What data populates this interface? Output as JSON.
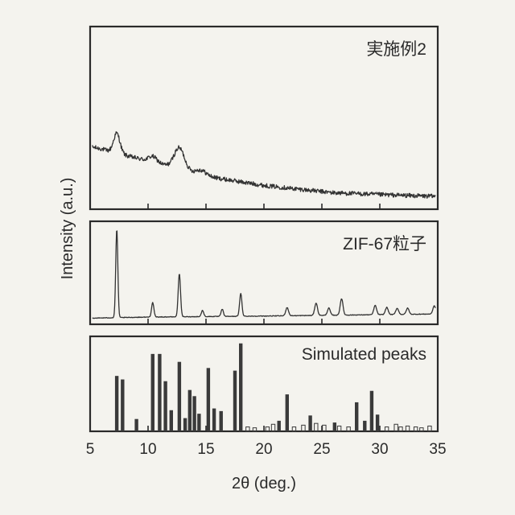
{
  "chart_data": {
    "type": "line",
    "xlabel": "2θ (deg.)",
    "ylabel": "Intensity (a.u.)",
    "xlim": [
      5,
      35
    ],
    "x_ticks": [
      5,
      10,
      15,
      20,
      25,
      30,
      35
    ],
    "panels": [
      {
        "label": "実施例2",
        "kind": "line",
        "baseline": [
          [
            5.2,
            0.34
          ],
          [
            6,
            0.33
          ],
          [
            7,
            0.31
          ],
          [
            9,
            0.28
          ],
          [
            11,
            0.25
          ],
          [
            14,
            0.19
          ],
          [
            17,
            0.16
          ],
          [
            20,
            0.13
          ],
          [
            23,
            0.11
          ],
          [
            26,
            0.09
          ],
          [
            30,
            0.08
          ],
          [
            34.8,
            0.07
          ]
        ],
        "peaks": [
          [
            7.3,
            0.11,
            0.28
          ],
          [
            10.4,
            0.03,
            0.35
          ],
          [
            12.7,
            0.12,
            0.45
          ],
          [
            14.5,
            0.03,
            0.5
          ]
        ],
        "noise": 0.012,
        "ylim": [
          0,
          1
        ]
      },
      {
        "label": "ZIF-67粒子",
        "kind": "line",
        "baseline": [
          [
            5.2,
            0.06
          ],
          [
            10,
            0.07
          ],
          [
            20,
            0.08
          ],
          [
            34.8,
            0.1
          ]
        ],
        "peaks": [
          [
            7.3,
            0.86,
            0.09
          ],
          [
            10.4,
            0.14,
            0.1
          ],
          [
            12.7,
            0.42,
            0.1
          ],
          [
            14.7,
            0.06,
            0.1
          ],
          [
            16.4,
            0.07,
            0.1
          ],
          [
            18.0,
            0.22,
            0.1
          ],
          [
            22.0,
            0.08,
            0.12
          ],
          [
            24.5,
            0.12,
            0.12
          ],
          [
            25.6,
            0.07,
            0.12
          ],
          [
            26.7,
            0.16,
            0.12
          ],
          [
            29.6,
            0.09,
            0.12
          ],
          [
            30.6,
            0.07,
            0.12
          ],
          [
            31.5,
            0.06,
            0.12
          ],
          [
            32.4,
            0.06,
            0.12
          ],
          [
            34.7,
            0.08,
            0.12
          ]
        ],
        "noise": 0.003,
        "ylim": [
          0,
          1
        ]
      },
      {
        "label": "Simulated peaks",
        "kind": "sticks",
        "sticks": [
          [
            7.3,
            0.63
          ],
          [
            7.8,
            0.59
          ],
          [
            9.0,
            0.14
          ],
          [
            10.4,
            0.88
          ],
          [
            11.0,
            0.88
          ],
          [
            11.5,
            0.57
          ],
          [
            12.0,
            0.24
          ],
          [
            12.7,
            0.79
          ],
          [
            13.2,
            0.15
          ],
          [
            13.6,
            0.47
          ],
          [
            14.0,
            0.4
          ],
          [
            14.4,
            0.2
          ],
          [
            15.2,
            0.72
          ],
          [
            15.7,
            0.26
          ],
          [
            16.3,
            0.23
          ],
          [
            17.5,
            0.69
          ],
          [
            18.0,
            1.0
          ],
          [
            18.6,
            0.05
          ],
          [
            19.2,
            0.04
          ],
          [
            20.3,
            0.05
          ],
          [
            20.8,
            0.08
          ],
          [
            21.3,
            0.12
          ],
          [
            22.0,
            0.42
          ],
          [
            22.6,
            0.05
          ],
          [
            23.4,
            0.07
          ],
          [
            24.0,
            0.18
          ],
          [
            24.5,
            0.09
          ],
          [
            25.2,
            0.07
          ],
          [
            26.1,
            0.1
          ],
          [
            26.5,
            0.06
          ],
          [
            27.3,
            0.05
          ],
          [
            28.0,
            0.33
          ],
          [
            28.7,
            0.12
          ],
          [
            29.3,
            0.46
          ],
          [
            29.8,
            0.19
          ],
          [
            30.6,
            0.05
          ],
          [
            31.4,
            0.08
          ],
          [
            31.8,
            0.05
          ],
          [
            32.4,
            0.06
          ],
          [
            33.1,
            0.05
          ],
          [
            33.6,
            0.04
          ],
          [
            34.3,
            0.06
          ]
        ],
        "ylim": [
          0,
          1.08
        ]
      }
    ]
  }
}
